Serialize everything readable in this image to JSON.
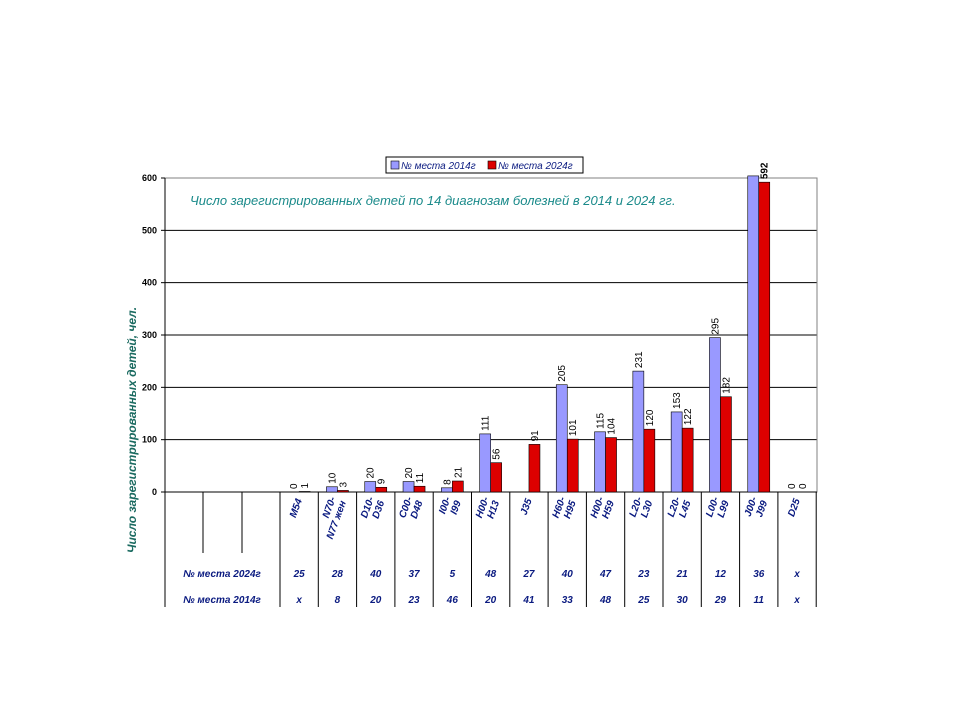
{
  "chart_data": {
    "type": "bar",
    "title": "Число зарегистрированных детей по 14 диагнозам болезней в 2014 и 2024 гг.",
    "ylabel": "Число зарегистрированных детей, чел.",
    "ylim": [
      0,
      600
    ],
    "yticks": [
      "0",
      "100",
      "200",
      "300",
      "400",
      "500",
      "600"
    ],
    "legend_position": "top",
    "grid": true,
    "categories": [
      "M54",
      "N70-N77 жен",
      "D10-D36",
      "C00-D48",
      "I00-I99",
      "H00-H13",
      "J35",
      "H60-H95",
      "H00-H59",
      "L20-L30",
      "L20-L45",
      "L00-L99",
      "J00-J99",
      "D25"
    ],
    "series": [
      {
        "name": "№ места 2014г",
        "color": "#9999ff",
        "values": [
          0,
          10,
          20,
          20,
          8,
          111,
          null,
          205,
          115,
          231,
          153,
          295,
          604,
          0
        ],
        "labels": [
          "0",
          "10",
          "20",
          "20",
          "8",
          "111",
          "",
          "205",
          "115",
          "231",
          "153",
          "295",
          "",
          "0"
        ]
      },
      {
        "name": "№ места 2024г",
        "color": "#dd0000",
        "values": [
          1,
          3,
          9,
          11,
          21,
          56,
          91,
          101,
          104,
          120,
          122,
          182,
          592,
          0
        ],
        "labels": [
          "1",
          "3",
          "9",
          "11",
          "21",
          "56",
          "91",
          "101",
          "104",
          "120",
          "122",
          "182",
          "592",
          "0"
        ]
      }
    ],
    "table": {
      "rows": [
        {
          "label": "№ места 2024г",
          "values": [
            "25",
            "28",
            "40",
            "37",
            "5",
            "48",
            "27",
            "40",
            "47",
            "23",
            "21",
            "12",
            "36",
            "x"
          ]
        },
        {
          "label": "№ места 2014г",
          "values": [
            "x",
            "8",
            "20",
            "23",
            "46",
            "20",
            "41",
            "33",
            "48",
            "25",
            "30",
            "29",
            "11",
            "x"
          ]
        }
      ]
    }
  }
}
